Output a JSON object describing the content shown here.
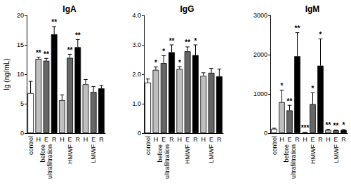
{
  "chart_data": [
    {
      "type": "bar",
      "title": "IgA",
      "y_label": "Ig (ng/mL)",
      "categories": [
        null,
        "H",
        "E",
        "R",
        "H",
        "E",
        "R",
        "H",
        "E",
        "R"
      ],
      "groups": [
        {
          "label": "control",
          "size": 1
        },
        {
          "label": "before\nultrafiltration",
          "size": 3
        },
        {
          "label": "HMWF",
          "size": 3
        },
        {
          "label": "LMWF",
          "size": 3
        }
      ],
      "values": [
        6.8,
        12.6,
        12.3,
        16.8,
        5.6,
        12.8,
        14.6,
        8.3,
        7.0,
        7.6
      ],
      "errors": [
        2.0,
        0.3,
        0.4,
        1.3,
        0.9,
        0.6,
        1.3,
        0.8,
        0.9,
        0.5
      ],
      "significance": [
        null,
        "**",
        "**",
        "**",
        null,
        "**",
        "**",
        null,
        null,
        null
      ],
      "colors": [
        "#ffffff",
        "#bfbfbf",
        "#666666",
        "#000000",
        "#bfbfbf",
        "#666666",
        "#000000",
        "#bfbfbf",
        "#666666",
        "#000000"
      ],
      "ylim": [
        0,
        20
      ],
      "yticks": [
        0,
        5,
        10,
        15,
        20
      ],
      "grid": false
    },
    {
      "type": "bar",
      "title": "IgG",
      "categories": [
        null,
        "H",
        "E",
        "R",
        "H",
        "E",
        "R",
        "H",
        "E",
        "R"
      ],
      "groups": [
        {
          "label": "control",
          "size": 1
        },
        {
          "label": "before\nultrafiltration",
          "size": 3
        },
        {
          "label": "HMWF",
          "size": 3
        },
        {
          "label": "LMWF",
          "size": 3
        }
      ],
      "values": [
        1.72,
        2.15,
        2.38,
        2.75,
        2.18,
        2.78,
        2.65,
        1.95,
        2.05,
        1.93
      ],
      "errors": [
        0.12,
        0.1,
        0.25,
        0.25,
        0.08,
        0.15,
        0.35,
        0.1,
        0.15,
        0.25
      ],
      "significance": [
        null,
        "*",
        "*",
        "**",
        "*",
        "**",
        "*",
        null,
        null,
        null
      ],
      "colors": [
        "#ffffff",
        "#bfbfbf",
        "#666666",
        "#000000",
        "#bfbfbf",
        "#666666",
        "#000000",
        "#bfbfbf",
        "#666666",
        "#000000"
      ],
      "ylim": [
        0,
        4
      ],
      "yticks": [
        0,
        {
          "value": 1,
          "label": "1.0"
        },
        {
          "value": 2,
          "label": "2.0"
        },
        {
          "value": 3,
          "label": "3.0"
        },
        {
          "value": 4,
          "label": "4.0"
        }
      ],
      "grid": false
    },
    {
      "type": "bar",
      "title": "IgM",
      "categories": [
        null,
        "H",
        "E",
        "R",
        "H",
        "E",
        "R",
        "H",
        "E",
        "R"
      ],
      "groups": [
        {
          "label": "control",
          "size": 1
        },
        {
          "label": "before\nultrafiltration",
          "size": 3
        },
        {
          "label": "HMWF",
          "size": 3
        },
        {
          "label": "LMWF",
          "size": 3
        }
      ],
      "values": [
        110,
        790,
        580,
        1960,
        15,
        740,
        1720,
        80,
        70,
        80
      ],
      "errors": [
        15,
        300,
        130,
        600,
        5,
        290,
        680,
        15,
        10,
        10
      ],
      "significance": [
        null,
        "*",
        "**",
        "**",
        "***",
        "*",
        "*",
        "**",
        "**",
        "*"
      ],
      "colors": [
        "#ffffff",
        "#bfbfbf",
        "#666666",
        "#000000",
        "#bfbfbf",
        "#666666",
        "#000000",
        "#bfbfbf",
        "#666666",
        "#000000"
      ],
      "ylim": [
        0,
        3000
      ],
      "yticks": [
        0,
        1000,
        2000,
        3000
      ],
      "grid": false
    }
  ]
}
